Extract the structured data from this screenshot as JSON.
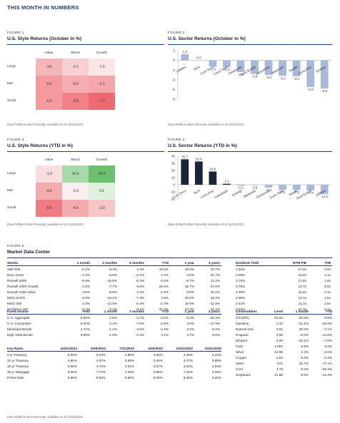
{
  "page_title": "THIS MONTH IN NUMBERS",
  "figures": {
    "fig1": {
      "label": "FIGURE 1",
      "title": "U.S. Style Returns (October in %)",
      "source": "Data Reflects Most Recently Available As of 10/31/2023"
    },
    "fig2": {
      "label": "FIGURE 2",
      "title": "U.S. Sector Returns (October in %)",
      "source": "Data Reflects Most Recently Available As of 10/31/2023"
    },
    "fig3": {
      "label": "FIGURE 3",
      "title": "U.S. Style Returns (YTD in %)",
      "source": "Data Reflects Most Recently Available As of 10/31/2023"
    },
    "fig4": {
      "label": "FIGURE 4",
      "title": "U.S. Sector Returns (YTD in %)",
      "source": "Data Reflects Most Recently Available As of 10/31/2023"
    },
    "fig5": {
      "label": "FIGURE 5",
      "title": "Market Data Center",
      "source": "Data Reflects Most Recently Available As of 10/31/2023"
    }
  },
  "chart_data": [
    {
      "type": "heatmap",
      "columns": [
        "Value",
        "Blend",
        "Growth"
      ],
      "rows": [
        "Large",
        "Mid",
        "Small"
      ],
      "values": [
        [
          -3.6,
          -2.2,
          -1.5
        ],
        [
          -6.0,
          -5.0,
          -5.1
        ],
        [
          -6.0,
          -6.9,
          -7.7
        ]
      ],
      "display": [
        [
          "-3.6",
          "-2.2",
          "-1.5"
        ],
        [
          "-6.0",
          "-5.0",
          "-5.1"
        ],
        [
          "-6.0",
          "-6.9",
          "-7.7"
        ]
      ],
      "colors": [
        [
          "#f4b6b9",
          "#f8d0d2",
          "#fce5e6"
        ],
        [
          "#f29a9e",
          "#f4adb1",
          "#f3a7ab"
        ],
        [
          "#f29a9e",
          "#f08288",
          "#ed6a71"
        ]
      ]
    },
    {
      "type": "bar",
      "categories": [
        "Utilities",
        "Tech",
        "Com Svcs",
        "Cons Stpls",
        "Financials",
        "Real Estate",
        "Industrials",
        "Materials",
        "Health",
        "Cons Disc",
        "Energy"
      ],
      "values": [
        1.3,
        0.0,
        -1.3,
        -1.4,
        -2.4,
        -2.8,
        -3.0,
        -3.2,
        -3.3,
        -5.5,
        -5.8
      ],
      "labels": [
        "1.3",
        "0.0",
        "-1.3",
        "-1.4",
        "-2.4",
        "-2.8",
        "-3.0",
        "-3.2",
        "-3.3",
        "-5.5",
        "-5.8"
      ],
      "yticks": [
        "2",
        "0",
        "-2",
        "-4",
        "-6",
        "-8"
      ],
      "ylim": [
        -8,
        2
      ],
      "bar_color": "#a9b9da"
    },
    {
      "type": "heatmap",
      "columns": [
        "Value",
        "Blend",
        "Growth"
      ],
      "rows": [
        "Large",
        "Mid",
        "Small"
      ],
      "values": [
        [
          -1.9,
          10.6,
          23.0
        ],
        [
          -4.5,
          -1.3,
          4.2
        ],
        [
          -6.5,
          -4.5,
          -2.9
        ]
      ],
      "display": [
        [
          "-1.9",
          "10.6",
          "23.0"
        ],
        [
          "-4.5",
          "-1.3",
          "4.2"
        ],
        [
          "-6.5",
          "-4.5",
          "-2.9"
        ]
      ],
      "colors": [
        [
          "#f8dedf",
          "#a8d9a9",
          "#6cbf6f"
        ],
        [
          "#f3acaf",
          "#fbeeee",
          "#dff0df"
        ],
        [
          "#ee7d83",
          "#f3acaf",
          "#f6c6c8"
        ]
      ]
    },
    {
      "type": "bar",
      "categories": [
        "Com Svcs",
        "Tech",
        "Cons Disc",
        "Industrials",
        "Energy",
        "Materials",
        "Financials",
        "Cons Stpls",
        "Health",
        "Real Estate",
        "Utilities"
      ],
      "values": [
        35.7,
        32.6,
        18.6,
        1.4,
        -0.1,
        -0.6,
        -4.0,
        -7.2,
        -7.2,
        -7.9,
        -13.1
      ],
      "labels": [
        "35.7",
        "32.6",
        "18.6",
        "1.4",
        "-0.1",
        "-0.6",
        "-4.0",
        "-7.2",
        "-7.2",
        "-7.9",
        "-13.1"
      ],
      "yticks": [
        "40",
        "30",
        "20",
        "10",
        "0",
        "-10",
        "-20"
      ],
      "ylim": [
        -20,
        40
      ],
      "colors": [
        "#1b2336",
        "#1b2336",
        "#1b2336",
        "#1b2336",
        "#1b2336",
        "#a9b9da",
        "#a9b9da",
        "#a9b9da",
        "#a9b9da",
        "#a9b9da",
        "#a9b9da"
      ]
    }
  ],
  "tables": {
    "stocks": {
      "headers": [
        "Stocks",
        "1 month",
        "3 months",
        "6 months",
        "YTD",
        "1 year",
        "3 years"
      ],
      "rows": [
        [
          "S&P 500",
          "-2.2%",
          "-8.3%",
          "1.3%",
          "10.6%",
          "10.0%",
          "33.7%"
        ],
        [
          "Dow Jones",
          "-1.3%",
          "-6.6%",
          "-2.1%",
          "1.3%",
          "3.0%",
          "31.7%"
        ],
        [
          "Russell 2000",
          "-6.9%",
          "-16.8%",
          "-5.3%",
          "-4.5%",
          "-8.7%",
          "12.2%"
        ],
        [
          "Russell 1000 Growth",
          "-1.5%",
          "-7.7%",
          "6.6%",
          "23.0%",
          "18.7%",
          "27.6%"
        ],
        [
          "Russell 1000 Value",
          "-3.6%",
          "-9.8%",
          "-4.3%",
          "-1.9%",
          "0.0%",
          "33.1%"
        ],
        [
          "MSCI EAFE",
          "-2.9%",
          "-10.1%",
          "-7.3%",
          "3.9%",
          "15.5%",
          "19.4%"
        ],
        [
          "MSCI EM",
          "-3.3%",
          "-12.5%",
          "-5.4%",
          "-2.3%",
          "10.0%",
          "-11.8%"
        ],
        [
          "NASDAQ 100",
          "-2.1%",
          "-8.4%",
          "9.1%",
          "32.3%",
          "27.0%",
          "32.4%"
        ]
      ]
    },
    "dividend": {
      "headers": [
        "Dividend Yield",
        "NTM P/E",
        "P/B"
      ],
      "rows": [
        [
          "1.56%",
          "17.2x",
          "3.8x"
        ],
        [
          "2.08%",
          "15.8x",
          "4.1x"
        ],
        [
          "1.70%",
          "17.8x",
          "1.6x"
        ],
        [
          "0.76%",
          "23.7x",
          "9.9x"
        ],
        [
          "2.39%",
          "15.2x",
          "2.1x"
        ],
        [
          "2.36%",
          "12.1x",
          "1.6x"
        ],
        [
          "2.44%",
          "11.3x",
          "1.5x"
        ],
        [
          "0.62%",
          "22.3x",
          "6.2x"
        ]
      ]
    },
    "fixed": {
      "headers": [
        "Fixed Income",
        "Yield",
        "1 month",
        "3 months",
        "YTD",
        "1 year",
        "3 years"
      ],
      "rows": [
        [
          "U.S. Aggregate",
          "5.65%",
          "-1.6%",
          "-4.7%",
          "-2.5%",
          "0.4%",
          "-15.1%"
        ],
        [
          "U.S. Corporates",
          "6.40%",
          "-2.4%",
          "-7.0%",
          "-2.8%",
          "2.0%",
          "-17.9%"
        ],
        [
          "Municipal Bonds",
          "4.72%",
          "-1.2%",
          "-4.5%",
          "-2.3%",
          "2.2%",
          "-6.2%"
        ],
        [
          "High Yield Bonds",
          "9.50%",
          "-1.0%",
          "-2.4%",
          "3.1%",
          "4.7%",
          "0.6%"
        ]
      ]
    },
    "commodities": {
      "headers": [
        "Commodities",
        "Level",
        "1 month",
        "YTD"
      ],
      "rows": [
        [
          "Oil (WTI)",
          "81.02",
          "-10.8%",
          "0.9%"
        ],
        [
          "Gasoline",
          "2.32",
          "-12.1%",
          "-10.0%"
        ],
        [
          "Natural Gas",
          "3.81",
          "30.2%",
          "-7.1%"
        ],
        [
          "Propane",
          "0.66",
          "-9.0%",
          "-14.6%"
        ],
        [
          "Ethanol",
          "2.05",
          "-10.1%",
          "-7.0%"
        ],
        [
          "Gold",
          "1,994",
          "6.9%",
          "9.2%"
        ],
        [
          "Silver",
          "22.95",
          "2.2%",
          "-4.5%"
        ],
        [
          "Copper",
          "3.64",
          "-2.3%",
          "-4.3%"
        ],
        [
          "Steel",
          "871",
          "23.7%",
          "17.1%"
        ],
        [
          "Corn",
          "4.79",
          "0.4%",
          "-29.4%"
        ],
        [
          "Soybeans",
          "12.80",
          "0.9%",
          "-14.3%"
        ]
      ]
    },
    "rates": {
      "headers": [
        "Key Rates",
        "10/31/2023",
        "9/30/2023",
        "7/31/2023",
        "4/30/2023",
        "10/31/2022",
        "10/31/2020"
      ],
      "rows": [
        [
          "2 yr Treasury",
          "5.06%",
          "5.04%",
          "4.86%",
          "4.06%",
          "4.49%",
          "0.15%"
        ],
        [
          "10 yr Treasury",
          "4.90%",
          "4.57%",
          "3.95%",
          "3.45%",
          "4.07%",
          "0.88%"
        ],
        [
          "30 yr Treasury",
          "5.06%",
          "4.70%",
          "4.02%",
          "3.67%",
          "4.20%",
          "1.64%"
        ],
        [
          "30 yr Mortgage",
          "8.06%",
          "7.74%",
          "7.26%",
          "6.85%",
          "7.22%",
          "3.06%"
        ],
        [
          "Prime Rate",
          "8.50%",
          "8.50%",
          "8.50%",
          "8.00%",
          "6.25%",
          "3.25%"
        ]
      ]
    }
  }
}
